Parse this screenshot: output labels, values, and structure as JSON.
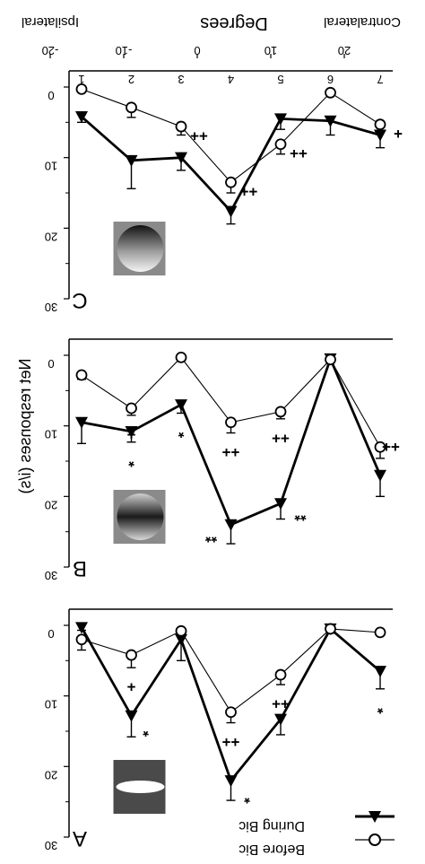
{
  "figure": {
    "top_axis": {
      "title": "Degrees",
      "left_label": "Ipsilateral",
      "right_label": "Contralateral",
      "degree_ticks": [
        "-20",
        "-10",
        "0",
        "10",
        "20"
      ],
      "position_ticks": [
        "1",
        "2",
        "3",
        "4",
        "5",
        "6",
        "7"
      ]
    },
    "y_axis_label": "Net responses (i/s)",
    "legend": [
      {
        "label": "During Bic",
        "marker": "filled-triangle-down",
        "line": "thick"
      },
      {
        "label": "Before Bic",
        "marker": "open-circle",
        "line": "thin"
      }
    ],
    "colors": {
      "ink": "#000000",
      "background": "#ffffff"
    }
  },
  "chart_data": [
    {
      "type": "line",
      "panel": "C",
      "stimulus_icon": "gradient-sphere",
      "x": [
        1,
        2,
        3,
        4,
        5,
        6,
        7
      ],
      "ylim": [
        0,
        30
      ],
      "yticks": [
        "0",
        "10",
        "20",
        "30"
      ],
      "series": [
        {
          "name": "During Bic",
          "values": [
            4.2,
            10.4,
            10.0,
            17.6,
            4.5,
            4.8,
            6.8
          ],
          "errors": [
            0.8,
            4.0,
            1.8,
            1.8,
            1.5,
            2.0,
            1.8
          ]
        },
        {
          "name": "Before Bic",
          "values": [
            0.3,
            2.9,
            5.6,
            13.5,
            8.1,
            0.8,
            5.3
          ],
          "errors": [
            0.4,
            1.4,
            1.2,
            1.5,
            1.4,
            0.3,
            1.0
          ]
        }
      ],
      "annotations": [
        {
          "x": 3,
          "text": "++"
        },
        {
          "x": 4,
          "text": "++"
        },
        {
          "x": 5,
          "text": "++"
        },
        {
          "x": 7,
          "text": "+"
        },
        {
          "x": 1,
          "text": "C"
        }
      ]
    },
    {
      "type": "line",
      "panel": "B",
      "stimulus_icon": "striped-sphere",
      "x": [
        1,
        2,
        3,
        4,
        5,
        6,
        7
      ],
      "ylim": [
        0,
        30
      ],
      "yticks": [
        "0",
        "10",
        "20",
        "30"
      ],
      "series": [
        {
          "name": "During Bic",
          "values": [
            9.5,
            10.8,
            7.0,
            24.0,
            21.0,
            0.5,
            17.0
          ],
          "errors": [
            3.0,
            1.5,
            1.2,
            2.7,
            2.2,
            0.4,
            3.0
          ]
        },
        {
          "name": "Before Bic",
          "values": [
            2.8,
            7.5,
            0.3,
            9.5,
            8.0,
            0.6,
            13.0
          ],
          "errors": [
            0.6,
            1.0,
            0.3,
            1.5,
            1.0,
            0.4,
            1.6
          ]
        }
      ],
      "annotations": [
        {
          "x": 2,
          "text": "+"
        },
        {
          "x": 2,
          "text": "*"
        },
        {
          "x": 3,
          "text": "*"
        },
        {
          "x": 4,
          "text": "++"
        },
        {
          "x": 4,
          "text": "**"
        },
        {
          "x": 5,
          "text": "++"
        },
        {
          "x": 5,
          "text": "**"
        },
        {
          "x": 7,
          "text": "++"
        },
        {
          "x": 1,
          "text": "B"
        }
      ]
    },
    {
      "type": "line",
      "panel": "A",
      "stimulus_icon": "bright-ellipse",
      "x": [
        1,
        2,
        3,
        4,
        5,
        6,
        7
      ],
      "ylim": [
        0,
        30
      ],
      "yticks": [
        "0",
        "10",
        "20",
        "30"
      ],
      "series": [
        {
          "name": "During Bic",
          "values": [
            0.3,
            12.8,
            2.0,
            22.0,
            13.3,
            0.5,
            6.5
          ],
          "errors": [
            0.4,
            3.0,
            3.0,
            2.8,
            2.2,
            0.3,
            2.5
          ]
        },
        {
          "name": "Before Bic",
          "values": [
            2.0,
            4.2,
            0.8,
            12.3,
            7.0,
            0.5,
            1.0
          ],
          "errors": [
            1.5,
            1.8,
            0.4,
            1.5,
            1.4,
            0.3,
            0.2
          ]
        }
      ],
      "annotations": [
        {
          "x": 2,
          "text": "+"
        },
        {
          "x": 2,
          "text": "*"
        },
        {
          "x": 4,
          "text": "++"
        },
        {
          "x": 4,
          "text": "*"
        },
        {
          "x": 5,
          "text": "++"
        },
        {
          "x": 7,
          "text": "*"
        },
        {
          "x": 1,
          "text": "A"
        }
      ]
    }
  ]
}
